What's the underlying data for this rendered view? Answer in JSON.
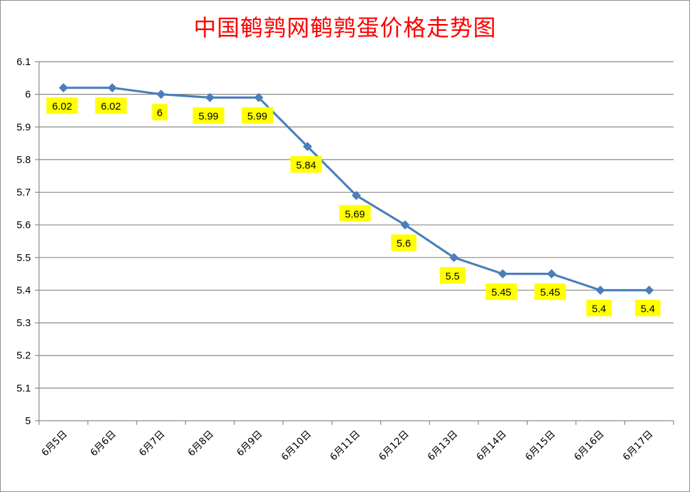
{
  "chart_data": {
    "type": "line",
    "title": "中国鹌鹑网鹌鹑蛋价格走势图",
    "categories": [
      "6月5日",
      "6月6日",
      "6月7日",
      "6月8日",
      "6月9日",
      "6月10日",
      "6月11日",
      "6月12日",
      "6月13日",
      "6月14日",
      "6月15日",
      "6月16日",
      "6月17日"
    ],
    "values": [
      6.02,
      6.02,
      6,
      5.99,
      5.99,
      5.84,
      5.69,
      5.6,
      5.5,
      5.45,
      5.45,
      5.4,
      5.4
    ],
    "data_labels": [
      "6.02",
      "6.02",
      "6",
      "5.99",
      "5.99",
      "5.84",
      "5.69",
      "5.6",
      "5.5",
      "5.45",
      "5.45",
      "5.4",
      "5.4"
    ],
    "yticks": [
      "5",
      "5.1",
      "5.2",
      "5.3",
      "5.4",
      "5.5",
      "5.6",
      "5.7",
      "5.8",
      "5.9",
      "6",
      "6.1"
    ],
    "ylim": [
      5,
      6.1
    ],
    "grid": true,
    "legend": "none",
    "colors": {
      "title": "#ff0000",
      "line": "#4a7ebb",
      "marker": "#4a7ebb",
      "label_bg": "#ffff00",
      "grid": "#868686"
    }
  }
}
